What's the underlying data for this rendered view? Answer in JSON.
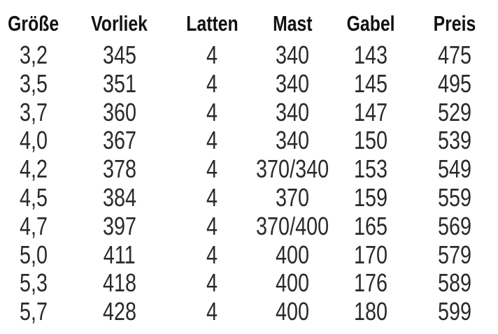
{
  "table": {
    "headers": [
      "Größe",
      "Vorliek",
      "Latten",
      "Mast",
      "Gabel",
      "Preis"
    ],
    "rows": [
      [
        "3,2",
        "345",
        "4",
        "340",
        "143",
        "475"
      ],
      [
        "3,5",
        "351",
        "4",
        "340",
        "145",
        "495"
      ],
      [
        "3,7",
        "360",
        "4",
        "340",
        "147",
        "529"
      ],
      [
        "4,0",
        "367",
        "4",
        "340",
        "150",
        "539"
      ],
      [
        "4,2",
        "378",
        "4",
        "370/340",
        "153",
        "549"
      ],
      [
        "4,5",
        "384",
        "4",
        "370",
        "159",
        "559"
      ],
      [
        "4,7",
        "397",
        "4",
        "370/400",
        "165",
        "569"
      ],
      [
        "5,0",
        "411",
        "4",
        "400",
        "170",
        "579"
      ],
      [
        "5,3",
        "418",
        "4",
        "400",
        "176",
        "589"
      ],
      [
        "5,7",
        "428",
        "4",
        "400",
        "180",
        "599"
      ]
    ]
  }
}
